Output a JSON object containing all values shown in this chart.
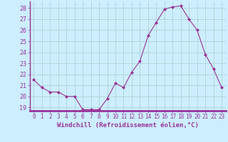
{
  "x": [
    0,
    1,
    2,
    3,
    4,
    5,
    6,
    7,
    8,
    9,
    10,
    11,
    12,
    13,
    14,
    15,
    16,
    17,
    18,
    19,
    20,
    21,
    22,
    23
  ],
  "y": [
    21.5,
    20.8,
    20.4,
    20.4,
    20.0,
    20.0,
    18.8,
    18.8,
    18.8,
    19.8,
    21.2,
    20.8,
    22.2,
    23.2,
    25.5,
    26.7,
    27.9,
    28.1,
    28.2,
    27.0,
    26.0,
    23.8,
    22.5,
    20.8
  ],
  "line_color": "#993399",
  "marker": "D",
  "marker_size": 2.0,
  "bg_color": "#cceeff",
  "grid_color": "#aacccc",
  "xlabel": "Windchill (Refroidissement éolien,°C)",
  "xlabel_fontsize": 6.5,
  "xlabel_color": "#993399",
  "tick_color": "#993399",
  "ytick_fontsize": 6.0,
  "xtick_fontsize": 5.5,
  "ylim": [
    18.7,
    28.6
  ],
  "xlim": [
    -0.5,
    23.5
  ],
  "yticks": [
    19,
    20,
    21,
    22,
    23,
    24,
    25,
    26,
    27,
    28
  ],
  "xticks": [
    0,
    1,
    2,
    3,
    4,
    5,
    6,
    7,
    8,
    9,
    10,
    11,
    12,
    13,
    14,
    15,
    16,
    17,
    18,
    19,
    20,
    21,
    22,
    23
  ],
  "spine_color": "#993399",
  "line_width": 0.8
}
